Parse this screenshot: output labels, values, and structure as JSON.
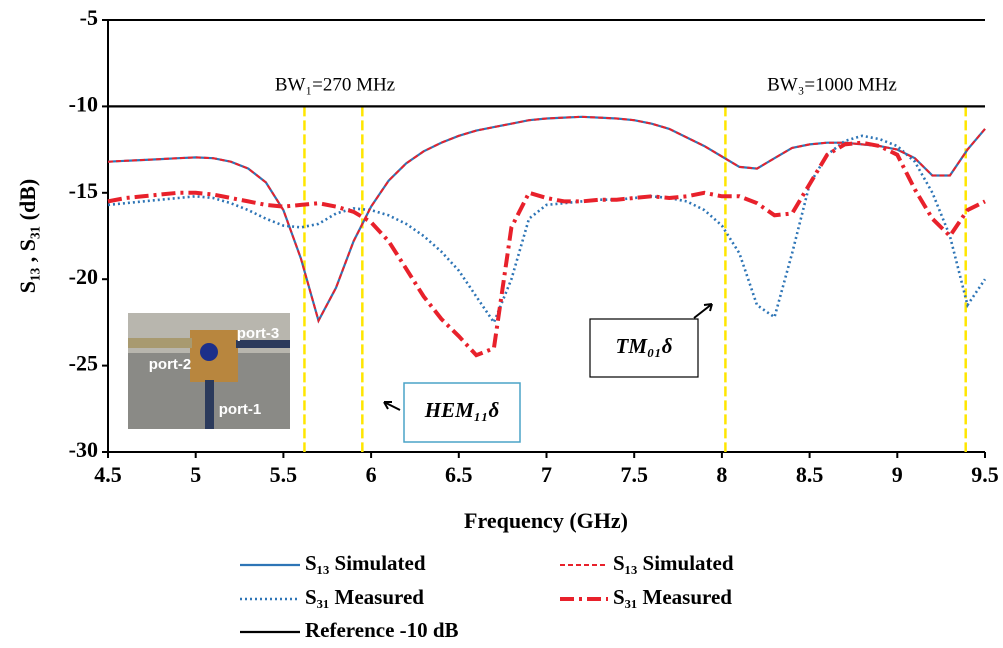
{
  "chart_data": {
    "type": "line",
    "y_label": "S₁₃ , S₃₁ (dB)",
    "x_label": "Frequency (GHz)",
    "xlim": [
      4.5,
      9.5
    ],
    "xticks": [
      4.5,
      5,
      5.5,
      6,
      6.5,
      7,
      7.5,
      8,
      8.5,
      9,
      9.5
    ],
    "ylim": [
      -5,
      -30
    ],
    "yticks": [
      -5,
      -10,
      -15,
      -20,
      -25,
      -30
    ],
    "x": [
      4.5,
      4.6,
      4.7,
      4.8,
      4.9,
      5.0,
      5.1,
      5.2,
      5.3,
      5.4,
      5.5,
      5.6,
      5.7,
      5.8,
      5.9,
      6.0,
      6.1,
      6.2,
      6.3,
      6.4,
      6.5,
      6.6,
      6.7,
      6.8,
      6.9,
      7.0,
      7.1,
      7.2,
      7.3,
      7.4,
      7.5,
      7.6,
      7.7,
      7.8,
      7.9,
      8.0,
      8.1,
      8.2,
      8.3,
      8.4,
      8.5,
      8.6,
      8.7,
      8.8,
      8.9,
      9.0,
      9.1,
      9.2,
      9.3,
      9.4,
      9.5
    ],
    "series": [
      {
        "name": "S₁₃ Simulated",
        "color": "#2e75b6",
        "dash": "solid",
        "values": [
          -13.2,
          -13.15,
          -13.1,
          -13.05,
          -13.0,
          -12.95,
          -13.0,
          -13.2,
          -13.6,
          -14.4,
          -16.0,
          -18.8,
          -22.4,
          -20.5,
          -17.8,
          -15.8,
          -14.3,
          -13.3,
          -12.6,
          -12.1,
          -11.7,
          -11.4,
          -11.2,
          -11.0,
          -10.8,
          -10.7,
          -10.65,
          -10.6,
          -10.65,
          -10.7,
          -10.8,
          -11.0,
          -11.3,
          -11.8,
          -12.3,
          -12.9,
          -13.5,
          -13.6,
          -13.0,
          -12.4,
          -12.2,
          -12.1,
          -12.1,
          -12.2,
          -12.3,
          -12.5,
          -13.0,
          -14.0,
          -14.0,
          -12.5,
          -11.3
        ]
      },
      {
        "name": "S₁₃ Simulated",
        "color": "#e8212b",
        "dash": "dashed",
        "values": [
          -13.2,
          -13.15,
          -13.1,
          -13.05,
          -13.0,
          -12.95,
          -13.0,
          -13.2,
          -13.6,
          -14.4,
          -16.0,
          -18.8,
          -22.4,
          -20.5,
          -17.8,
          -15.8,
          -14.3,
          -13.3,
          -12.6,
          -12.1,
          -11.7,
          -11.4,
          -11.2,
          -11.0,
          -10.8,
          -10.7,
          -10.65,
          -10.6,
          -10.65,
          -10.7,
          -10.8,
          -11.0,
          -11.3,
          -11.8,
          -12.3,
          -12.9,
          -13.5,
          -13.6,
          -13.0,
          -12.4,
          -12.2,
          -12.1,
          -12.1,
          -12.2,
          -12.3,
          -12.5,
          -13.0,
          -14.0,
          -14.0,
          -12.5,
          -11.3
        ]
      },
      {
        "name": "S₃₁ Measured",
        "color": "#2e75b6",
        "dash": "dotted",
        "values": [
          -15.7,
          -15.6,
          -15.5,
          -15.4,
          -15.3,
          -15.2,
          -15.3,
          -15.6,
          -16.0,
          -16.5,
          -16.9,
          -17.0,
          -16.8,
          -16.2,
          -15.9,
          -16.0,
          -16.3,
          -16.8,
          -17.5,
          -18.4,
          -19.5,
          -21.0,
          -22.5,
          -20.0,
          -16.5,
          -15.7,
          -15.6,
          -15.5,
          -15.4,
          -15.4,
          -15.3,
          -15.2,
          -15.3,
          -15.5,
          -16.0,
          -16.9,
          -18.5,
          -21.5,
          -22.2,
          -18.5,
          -14.5,
          -12.8,
          -12.0,
          -11.7,
          -11.9,
          -12.3,
          -13.2,
          -15.0,
          -17.5,
          -21.5,
          -20.0
        ]
      },
      {
        "name": "S₃₁ Measured",
        "color": "#e8212b",
        "dash": "dashdot",
        "values": [
          -15.5,
          -15.3,
          -15.2,
          -15.1,
          -15.0,
          -15.0,
          -15.1,
          -15.3,
          -15.5,
          -15.7,
          -15.8,
          -15.7,
          -15.6,
          -15.8,
          -16.1,
          -16.7,
          -17.8,
          -19.4,
          -21.0,
          -22.3,
          -23.3,
          -24.4,
          -24.0,
          -17.0,
          -15.0,
          -15.3,
          -15.5,
          -15.5,
          -15.4,
          -15.4,
          -15.3,
          -15.2,
          -15.3,
          -15.2,
          -15.0,
          -15.2,
          -15.2,
          -15.6,
          -16.3,
          -16.2,
          -14.5,
          -12.8,
          -12.2,
          -12.1,
          -12.3,
          -12.8,
          -14.8,
          -16.5,
          -17.5,
          -16.0,
          -15.5
        ]
      },
      {
        "name": "Reference -10 dB",
        "color": "#000000",
        "dash": "solid",
        "x": [
          4.5,
          9.5
        ],
        "values": [
          -10,
          -10
        ]
      }
    ],
    "vlines": {
      "color": "#ffe600",
      "x": [
        5.62,
        5.95,
        8.02,
        9.39
      ]
    },
    "annotations": [
      "BW₁=270 MHz",
      "BW₃=1000 MHz",
      "HEM₁₁δ",
      "TM₀₁δ"
    ],
    "inset_labels": [
      "port-2",
      "port-3",
      "port-1"
    ]
  }
}
